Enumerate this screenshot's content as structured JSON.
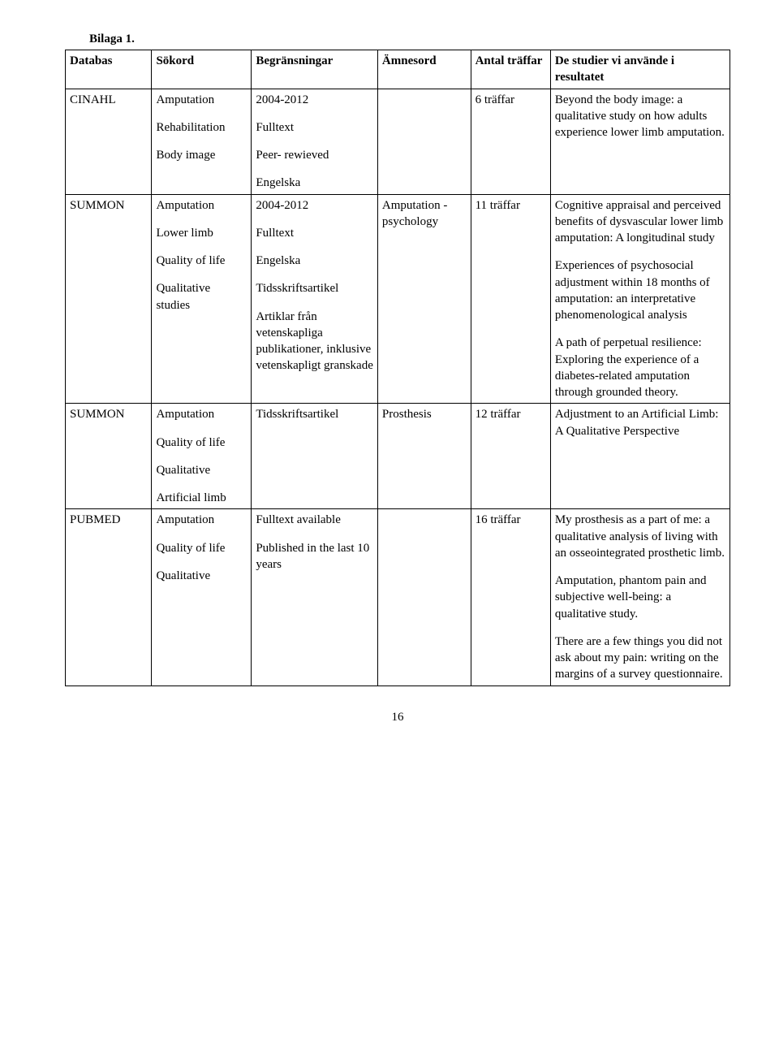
{
  "header_title": "Bilaga 1.",
  "columns": {
    "databas": "Databas",
    "sokord": "Sökord",
    "begr": "Begränsningar",
    "amnes": "Ämnesord",
    "antal": "Antal träffar",
    "result": "De studier vi använde i resultatet"
  },
  "rows": {
    "r1": {
      "databas": "CINAHL",
      "sokord_p1": "Amputation",
      "sokord_p2": "Rehabilitation",
      "sokord_p3": "Body image",
      "begr_p1": "2004-2012",
      "begr_p2": "Fulltext",
      "begr_p3": "Peer- rewieved",
      "begr_p4": "Engelska",
      "amnes": "",
      "antal": "6 träffar",
      "result_p1": "Beyond the body image: a qualitative study on how adults experience lower limb amputation."
    },
    "r2": {
      "databas": "SUMMON",
      "sokord_p1": "Amputation",
      "sokord_p2": "Lower limb",
      "sokord_p3": "Quality of life",
      "sokord_p4": "Qualitative studies",
      "begr_p1": "2004-2012",
      "begr_p2": "Fulltext",
      "begr_p3": "Engelska",
      "begr_p4": "Tidsskriftsartikel",
      "begr_p5": "Artiklar från vetenskapliga publikationer, inklusive vetenskapligt granskade",
      "amnes": "Amputation - psychology",
      "antal": "11 träffar",
      "result_p1": "Cognitive appraisal and perceived benefits of dysvascular lower limb amputation: A longitudinal study",
      "result_p2": "Experiences of psychosocial adjustment within 18 months of amputation: an interpretative phenomenological analysis",
      "result_p3": "A path of perpetual resilience: Exploring the experience of a diabetes-related amputation through grounded theory."
    },
    "r3": {
      "databas": "SUMMON",
      "sokord_p1": "Amputation",
      "sokord_p2": "Quality of life",
      "sokord_p3": "Qualitative",
      "sokord_p4": "Artificial limb",
      "begr_p1": "Tidsskriftsartikel",
      "amnes": "Prosthesis",
      "antal": "12 träffar",
      "result_p1": "Adjustment to an Artificial Limb: A Qualitative Perspective"
    },
    "r4": {
      "databas": "PUBMED",
      "sokord_p1": "Amputation",
      "sokord_p2": "Quality of life",
      "sokord_p3": "Qualitative",
      "begr_p1": "Fulltext available",
      "begr_p2": "Published in the last 10 years",
      "amnes": "",
      "antal": "16 träffar",
      "result_p1": "My prosthesis as a part of me: a qualitative analysis of living with an osseointegrated prosthetic limb.",
      "result_p2": "Amputation, phantom pain and subjective well-being: a qualitative study.",
      "result_p3": "There are a few things you did not ask about my pain: writing on the margins of a survey questionnaire."
    }
  },
  "page_number": "16"
}
